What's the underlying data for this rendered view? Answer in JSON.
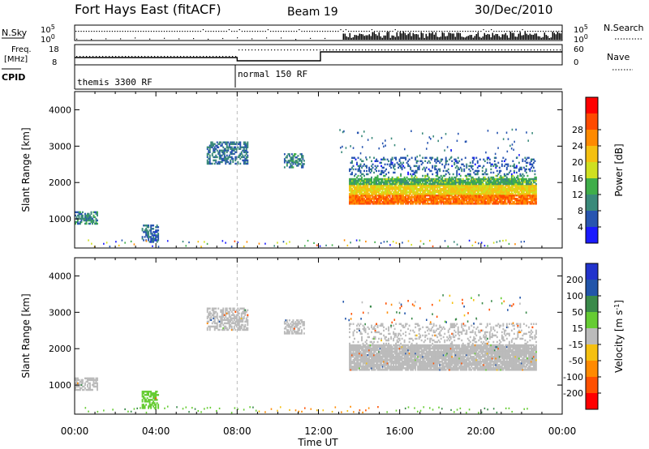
{
  "header": {
    "station": "Fort Hays East (fitACF)",
    "beam": "Beam 19",
    "date": "30/Dec/2010"
  },
  "strip": {
    "left_nsky": "N.Sky",
    "left_freq": "Freq.",
    "left_freq_unit": "[MHz]",
    "left_cpid": "CPID",
    "right_nsearch": "N.Search",
    "right_nave": "Nave",
    "noise_ticks": [
      "10^5",
      "10^0"
    ],
    "noise_ticks_right": [
      "10^5",
      "10^0"
    ],
    "freq_ticks": [
      "18",
      "8"
    ],
    "nave_ticks": [
      "60",
      "0"
    ]
  },
  "cpid_labels": [
    {
      "text": "themis 3300 RF",
      "hour": 0.0
    },
    {
      "text": "normal 150 RF",
      "hour": 8.0
    }
  ],
  "colors": {
    "power": [
      "#1a1aff",
      "#2855b0",
      "#3a8a7a",
      "#3fae4a",
      "#cfe020",
      "#f5c010",
      "#ff8a00",
      "#ff4a00",
      "#ff0000"
    ],
    "velocity": [
      "#2233cc",
      "#2255aa",
      "#3a8a4a",
      "#66cc33",
      "#bbbbbb",
      "#f5c010",
      "#ff8a00",
      "#ff5000",
      "#ff0000"
    ]
  },
  "chart_data": [
    {
      "type": "heatmap",
      "title": "",
      "xlabel": "Time UT",
      "ylabel": "Slant Range [km]",
      "xlim": [
        0,
        24
      ],
      "ylim": [
        200,
        4500
      ],
      "x_ticks": [
        "00:00",
        "04:00",
        "08:00",
        "12:00",
        "16:00",
        "20:00",
        "00:00"
      ],
      "y_ticks": [
        1000,
        2000,
        3000,
        4000
      ],
      "colorbar": {
        "label": "Power [dB]",
        "ticks": [
          "4",
          "8",
          "12",
          "16",
          "20",
          "24",
          "28"
        ],
        "range": [
          0,
          30
        ]
      },
      "regions": [
        {
          "t": [
            0.0,
            1.1
          ],
          "r": [
            850,
            1200
          ],
          "value": 8
        },
        {
          "t": [
            3.3,
            4.1
          ],
          "r": [
            350,
            800
          ],
          "value": 6
        },
        {
          "t": [
            6.5,
            8.5
          ],
          "r": [
            2500,
            3100
          ],
          "value": 7
        },
        {
          "t": [
            10.3,
            11.3
          ],
          "r": [
            2400,
            2800
          ],
          "value": 8
        },
        {
          "t": [
            13.5,
            22.7
          ],
          "r": [
            1400,
            2700
          ],
          "value": 16
        }
      ]
    },
    {
      "type": "heatmap",
      "title": "",
      "xlabel": "Time UT",
      "ylabel": "Slant Range [km]",
      "xlim": [
        0,
        24
      ],
      "ylim": [
        200,
        4500
      ],
      "x_ticks": [
        "00:00",
        "04:00",
        "08:00",
        "12:00",
        "16:00",
        "20:00",
        "00:00"
      ],
      "y_ticks": [
        1000,
        2000,
        3000,
        4000
      ],
      "colorbar": {
        "label": "Velocity [m s^-1]",
        "ticks": [
          "200",
          "100",
          "50",
          "15",
          "-15",
          "-50",
          "-100",
          "-200"
        ],
        "range": [
          -250,
          250
        ]
      },
      "regions": [
        {
          "t": [
            0.0,
            1.1
          ],
          "r": [
            850,
            1200
          ],
          "value": 0
        },
        {
          "t": [
            3.3,
            4.1
          ],
          "r": [
            350,
            800
          ],
          "value": 40
        },
        {
          "t": [
            6.5,
            8.5
          ],
          "r": [
            2500,
            3100
          ],
          "value": 0
        },
        {
          "t": [
            10.3,
            11.3
          ],
          "r": [
            2400,
            2800
          ],
          "value": 0
        },
        {
          "t": [
            13.5,
            22.7
          ],
          "r": [
            1400,
            2700
          ],
          "value": 0
        }
      ]
    }
  ]
}
